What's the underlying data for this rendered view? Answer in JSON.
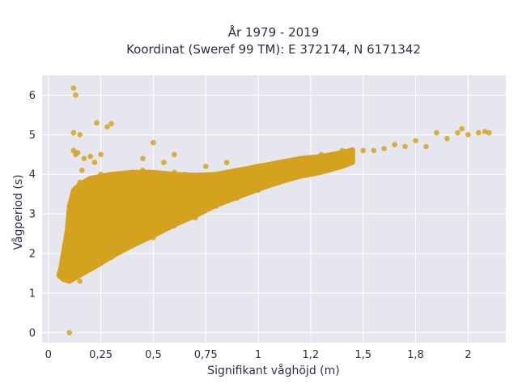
{
  "chart_data": {
    "type": "scatter",
    "title": "År 1979 - 2019",
    "subtitle": "Koordinat (Sweref 99 TM): E 372174, N 6171342",
    "xlabel": "Signifikant våghöjd (m)",
    "ylabel": "Vågperiod (s)",
    "xlim": [
      -0.03,
      2.18
    ],
    "ylim": [
      -0.25,
      6.5
    ],
    "x_ticks": [
      0,
      0.25,
      0.5,
      0.75,
      1,
      1.25,
      1.5,
      1.75,
      2
    ],
    "x_tick_labels": [
      "0",
      "0,25",
      "0,5",
      "0,75",
      "1",
      "1,2",
      "1,5",
      "1,8",
      "2"
    ],
    "y_ticks": [
      0,
      1,
      2,
      3,
      4,
      5,
      6
    ],
    "y_tick_labels": [
      "0",
      "1",
      "2",
      "3",
      "4",
      "5",
      "6"
    ],
    "grid": true,
    "marker_color": "#d4a21f",
    "plot_background": "#e5e6ee",
    "series": [
      {
        "points": [
          [
            0.06,
            1.45
          ],
          [
            0.07,
            1.5
          ],
          [
            0.08,
            1.6
          ],
          [
            0.09,
            1.4
          ],
          [
            0.1,
            1.3
          ],
          [
            0.1,
            1.7
          ],
          [
            0.11,
            2.0
          ],
          [
            0.12,
            2.3
          ],
          [
            0.12,
            2.9
          ],
          [
            0.13,
            3.2
          ],
          [
            0.14,
            3.5
          ],
          [
            0.15,
            3.8
          ],
          [
            0.16,
            4.1
          ],
          [
            0.17,
            4.4
          ],
          [
            0.13,
            4.5
          ],
          [
            0.14,
            4.55
          ],
          [
            0.12,
            4.6
          ],
          [
            0.2,
            4.45
          ],
          [
            0.22,
            4.3
          ],
          [
            0.25,
            4.0
          ],
          [
            0.3,
            3.9
          ],
          [
            0.35,
            4.0
          ],
          [
            0.4,
            4.05
          ],
          [
            0.45,
            4.1
          ],
          [
            0.5,
            4.0
          ],
          [
            0.55,
            4.0
          ],
          [
            0.6,
            4.05
          ],
          [
            0.65,
            4.0
          ],
          [
            0.7,
            3.95
          ],
          [
            0.8,
            4.0
          ],
          [
            0.9,
            4.1
          ],
          [
            1.0,
            4.2
          ],
          [
            1.1,
            4.3
          ],
          [
            1.2,
            4.4
          ],
          [
            1.3,
            4.5
          ],
          [
            1.4,
            4.6
          ],
          [
            1.5,
            4.6
          ],
          [
            1.6,
            4.65
          ],
          [
            1.7,
            4.7
          ],
          [
            1.8,
            4.7
          ],
          [
            1.9,
            4.9
          ],
          [
            2.0,
            5.0
          ],
          [
            2.1,
            5.05
          ],
          [
            1.95,
            5.05
          ],
          [
            1.85,
            5.05
          ],
          [
            2.08,
            5.08
          ],
          [
            2.05,
            5.05
          ],
          [
            1.97,
            5.15
          ],
          [
            1.75,
            4.85
          ],
          [
            1.65,
            4.75
          ],
          [
            1.55,
            4.6
          ],
          [
            1.45,
            4.35
          ],
          [
            0.3,
            1.9
          ],
          [
            0.4,
            2.2
          ],
          [
            0.5,
            2.4
          ],
          [
            0.6,
            2.7
          ],
          [
            0.7,
            2.9
          ],
          [
            0.8,
            3.2
          ],
          [
            0.9,
            3.4
          ],
          [
            1.0,
            3.6
          ],
          [
            1.1,
            3.8
          ],
          [
            1.2,
            4.0
          ],
          [
            1.3,
            4.1
          ],
          [
            0.2,
            1.6
          ],
          [
            0.15,
            1.3
          ],
          [
            0.1,
            0.0
          ],
          [
            0.12,
            6.18
          ],
          [
            0.13,
            6.0
          ],
          [
            0.12,
            5.05
          ],
          [
            0.15,
            5.0
          ],
          [
            0.23,
            5.3
          ],
          [
            0.28,
            5.2
          ],
          [
            0.3,
            5.28
          ],
          [
            0.25,
            4.5
          ],
          [
            0.45,
            4.4
          ],
          [
            0.5,
            4.8
          ],
          [
            0.55,
            4.3
          ],
          [
            0.6,
            4.5
          ],
          [
            0.75,
            4.2
          ],
          [
            0.85,
            4.3
          ],
          [
            0.65,
            3.5
          ],
          [
            0.75,
            3.6
          ],
          [
            0.45,
            2.35
          ],
          [
            0.55,
            3.2
          ],
          [
            0.4,
            3.6
          ],
          [
            0.35,
            2.9
          ],
          [
            0.25,
            2.5
          ],
          [
            0.2,
            3.4
          ]
        ]
      }
    ]
  }
}
